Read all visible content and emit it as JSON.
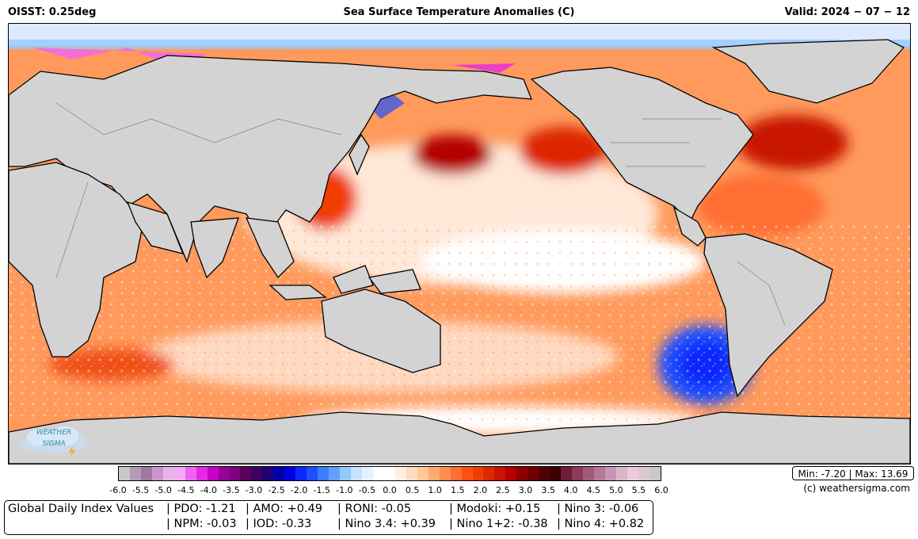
{
  "header": {
    "left": "OISST: 0.25deg",
    "center": "Sea Surface Temperature Anomalies (C)",
    "right": "Valid:  2024 − 07 − 12"
  },
  "logo": {
    "line1": "WEATHER",
    "line2": "SIGMA"
  },
  "colorbar": {
    "ticks": [
      "-6.0",
      "-5.5",
      "-5.0",
      "-4.5",
      "-4.0",
      "-3.5",
      "-3.0",
      "-2.5",
      "-2.0",
      "-1.5",
      "-1.0",
      "-0.5",
      "0.0",
      "0.5",
      "1.0",
      "1.5",
      "2.0",
      "2.5",
      "3.0",
      "3.5",
      "4.0",
      "4.5",
      "5.0",
      "5.5",
      "6.0"
    ],
    "colors": [
      "#c8c8c8",
      "#b49bb4",
      "#a078a0",
      "#c896c8",
      "#e6b4e6",
      "#f5aaf5",
      "#f064f0",
      "#e628e6",
      "#c800c8",
      "#96009b",
      "#7d007d",
      "#5a005a",
      "#3c0064",
      "#1e0078",
      "#0000aa",
      "#0000dc",
      "#0a28ff",
      "#1e50ff",
      "#3c7dff",
      "#64a0ff",
      "#96c8ff",
      "#c8e1ff",
      "#e6f0ff",
      "#ffffff",
      "#ffffff",
      "#fff0e1",
      "#ffdcbe",
      "#ffc896",
      "#ffaa6e",
      "#ff8c50",
      "#ff6e32",
      "#ff5014",
      "#f03c00",
      "#dc2800",
      "#c81400",
      "#b40000",
      "#8c0000",
      "#6e0000",
      "#500000",
      "#3c0000",
      "#6e1e3c",
      "#8c3c5a",
      "#a05a78",
      "#b47896",
      "#c896b4",
      "#dcb4c8",
      "#f0c8dc",
      "#dcc8d2",
      "#c8c8c8"
    ]
  },
  "stats": {
    "text": "Min: -7.20 | Max: 13.69"
  },
  "credit": "(c) weathersigma.com",
  "indices": {
    "label": "Global Daily Index Values",
    "row1": [
      "| PDO: -1.21",
      "| AMO: +0.49",
      "| RONI: -0.05",
      "| Modoki: +0.15",
      "| Nino 3: -0.06"
    ],
    "row2": [
      "| NPM: -0.03",
      "| IOD: -0.33",
      "| Nino 3.4: +0.39",
      "| Nino 1+2: -0.38",
      "| Nino 4: +0.82"
    ]
  }
}
